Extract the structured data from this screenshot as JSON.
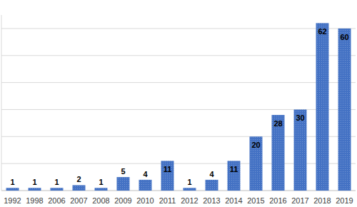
{
  "chart_data": {
    "type": "bar",
    "categories": [
      "1992",
      "1998",
      "2006",
      "2007",
      "2008",
      "2009",
      "2010",
      "2011",
      "2012",
      "2013",
      "2014",
      "2015",
      "2016",
      "2017",
      "2018",
      "2019"
    ],
    "values": [
      1,
      1,
      1,
      2,
      1,
      5,
      4,
      11,
      1,
      4,
      11,
      20,
      28,
      30,
      62,
      60
    ],
    "color": "#4472c4",
    "ylim": [
      0,
      65
    ],
    "yticks": [
      0,
      10,
      20,
      30,
      40,
      50,
      60
    ],
    "grid": true,
    "data_labels": true,
    "tick_labels": "x"
  }
}
